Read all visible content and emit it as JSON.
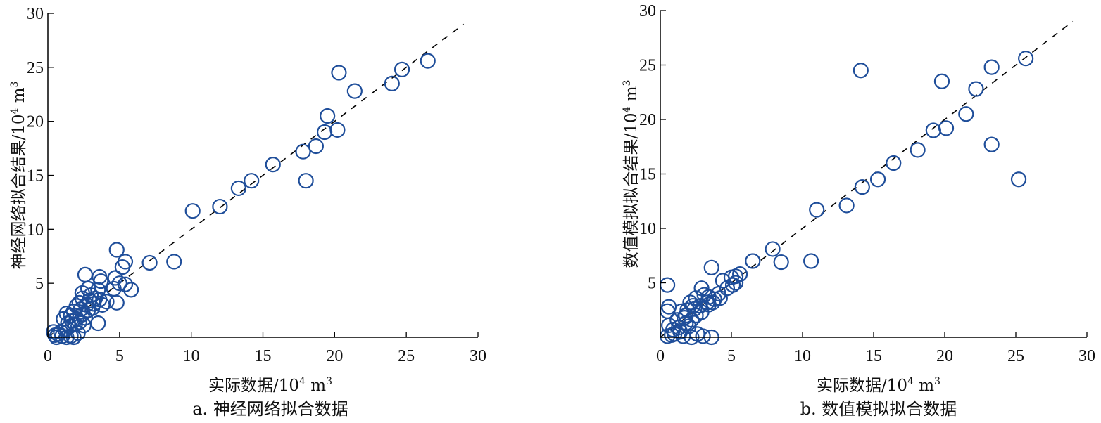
{
  "colors": {
    "marker": "#1f4e9a",
    "axis": "#000000",
    "ref_line": "#000000"
  },
  "chart_data": [
    {
      "type": "scatter",
      "caption": "a. 神经网络拟合数据",
      "xlabel": {
        "text": "实际数据/10",
        "sup1": "4",
        "mid": " m",
        "sup2": "3"
      },
      "ylabel": {
        "text": "神经网络拟合结果/10",
        "sup1": "4",
        "mid": " m",
        "sup2": "3"
      },
      "xlim": [
        0,
        30
      ],
      "ylim": [
        0,
        30
      ],
      "xticks": [
        0,
        5,
        10,
        15,
        20,
        25,
        30
      ],
      "yticks": [
        5,
        10,
        15,
        20,
        25,
        30
      ],
      "reference_line": {
        "style": "dashed",
        "from": [
          0,
          0
        ],
        "to": [
          29,
          29
        ]
      },
      "points": [
        [
          26.5,
          25.6
        ],
        [
          24.7,
          24.8
        ],
        [
          20.3,
          24.5
        ],
        [
          24.0,
          23.5
        ],
        [
          21.4,
          22.8
        ],
        [
          19.5,
          20.5
        ],
        [
          19.3,
          19.0
        ],
        [
          20.2,
          19.2
        ],
        [
          17.8,
          17.2
        ],
        [
          18.7,
          17.7
        ],
        [
          15.7,
          16.0
        ],
        [
          18.0,
          14.5
        ],
        [
          14.2,
          14.5
        ],
        [
          13.3,
          13.8
        ],
        [
          12.0,
          12.1
        ],
        [
          10.1,
          11.7
        ],
        [
          8.8,
          7.0
        ],
        [
          7.1,
          6.9
        ],
        [
          4.8,
          8.1
        ],
        [
          5.4,
          7.0
        ],
        [
          5.2,
          6.5
        ],
        [
          2.6,
          5.8
        ],
        [
          3.6,
          5.6
        ],
        [
          3.7,
          5.2
        ],
        [
          4.7,
          5.5
        ],
        [
          5.0,
          5.0
        ],
        [
          5.4,
          4.9
        ],
        [
          5.8,
          4.4
        ],
        [
          4.6,
          4.5
        ],
        [
          3.5,
          4.4
        ],
        [
          2.8,
          4.5
        ],
        [
          2.4,
          4.1
        ],
        [
          3.0,
          3.9
        ],
        [
          4.1,
          3.3
        ],
        [
          4.8,
          3.2
        ],
        [
          3.6,
          3.5
        ],
        [
          2.9,
          3.4
        ],
        [
          2.4,
          3.6
        ],
        [
          2.2,
          3.2
        ],
        [
          2.0,
          2.9
        ],
        [
          1.8,
          2.4
        ],
        [
          1.6,
          2.0
        ],
        [
          1.3,
          2.2
        ],
        [
          1.1,
          1.7
        ],
        [
          2.4,
          2.1
        ],
        [
          2.8,
          2.5
        ],
        [
          3.1,
          2.7
        ],
        [
          2.6,
          1.8
        ],
        [
          2.2,
          1.4
        ],
        [
          1.9,
          1.2
        ],
        [
          1.5,
          1.0
        ],
        [
          1.2,
          0.7
        ],
        [
          0.9,
          0.5
        ],
        [
          0.7,
          0.3
        ],
        [
          1.0,
          0.1
        ],
        [
          1.6,
          0.1
        ],
        [
          2.1,
          0.4
        ],
        [
          2.5,
          1.1
        ],
        [
          3.5,
          1.3
        ],
        [
          0.5,
          0.2
        ],
        [
          0.4,
          0.5
        ],
        [
          0.6,
          0.0
        ],
        [
          1.3,
          0.0
        ],
        [
          1.8,
          0.0
        ],
        [
          3.2,
          3.1
        ],
        [
          3.8,
          3.0
        ],
        [
          2.0,
          1.7
        ],
        [
          1.4,
          1.3
        ],
        [
          1.7,
          1.5
        ],
        [
          2.3,
          2.6
        ],
        [
          2.7,
          3.0
        ],
        [
          3.3,
          3.6
        ]
      ]
    },
    {
      "type": "scatter",
      "caption": "b. 数值模拟拟合数据",
      "xlabel": {
        "text": "实际数据/10",
        "sup1": "4",
        "mid": " m",
        "sup2": "3"
      },
      "ylabel": {
        "text": "数值模拟拟合结果/10",
        "sup1": "4",
        "mid": " m",
        "sup2": "3"
      },
      "xlim": [
        0,
        30
      ],
      "ylim": [
        0,
        30
      ],
      "xticks": [
        0,
        5,
        10,
        15,
        20,
        25,
        30
      ],
      "yticks": [
        5,
        10,
        15,
        20,
        25,
        30
      ],
      "reference_line": {
        "style": "dashed",
        "from": [
          0,
          0
        ],
        "to": [
          29,
          29
        ]
      },
      "points": [
        [
          25.7,
          25.6
        ],
        [
          23.3,
          24.8
        ],
        [
          14.1,
          24.5
        ],
        [
          19.8,
          23.5
        ],
        [
          22.2,
          22.8
        ],
        [
          21.5,
          20.5
        ],
        [
          19.2,
          19.0
        ],
        [
          20.1,
          19.2
        ],
        [
          18.1,
          17.2
        ],
        [
          23.3,
          17.7
        ],
        [
          16.4,
          16.0
        ],
        [
          25.2,
          14.5
        ],
        [
          15.3,
          14.5
        ],
        [
          14.2,
          13.8
        ],
        [
          13.1,
          12.1
        ],
        [
          11.0,
          11.7
        ],
        [
          10.6,
          7.0
        ],
        [
          8.5,
          6.9
        ],
        [
          7.9,
          8.1
        ],
        [
          6.5,
          7.0
        ],
        [
          3.6,
          6.4
        ],
        [
          5.6,
          5.8
        ],
        [
          5.3,
          5.6
        ],
        [
          5.0,
          5.5
        ],
        [
          4.4,
          5.2
        ],
        [
          5.3,
          5.0
        ],
        [
          5.1,
          4.8
        ],
        [
          4.7,
          4.5
        ],
        [
          2.9,
          4.5
        ],
        [
          4.1,
          4.0
        ],
        [
          3.8,
          3.5
        ],
        [
          3.4,
          3.7
        ],
        [
          3.1,
          3.9
        ],
        [
          2.5,
          3.6
        ],
        [
          2.1,
          3.2
        ],
        [
          0.5,
          4.8
        ],
        [
          0.6,
          2.8
        ],
        [
          0.5,
          2.4
        ],
        [
          1.5,
          2.4
        ],
        [
          1.8,
          2.0
        ],
        [
          2.4,
          2.6
        ],
        [
          2.8,
          2.9
        ],
        [
          3.3,
          3.2
        ],
        [
          1.2,
          1.6
        ],
        [
          0.6,
          1.1
        ],
        [
          0.5,
          0.1
        ],
        [
          1.0,
          0.3
        ],
        [
          1.6,
          0.1
        ],
        [
          2.2,
          0.0
        ],
        [
          3.0,
          0.1
        ],
        [
          3.6,
          0.0
        ],
        [
          1.3,
          0.9
        ],
        [
          1.8,
          1.3
        ],
        [
          2.2,
          1.6
        ],
        [
          0.9,
          0.7
        ],
        [
          2.5,
          2.0
        ],
        [
          2.0,
          1.0
        ],
        [
          1.4,
          0.5
        ],
        [
          2.6,
          0.3
        ],
        [
          0.8,
          0.2
        ],
        [
          1.7,
          1.8
        ],
        [
          2.9,
          2.3
        ],
        [
          3.4,
          3.0
        ],
        [
          2.3,
          2.9
        ],
        [
          1.9,
          2.5
        ],
        [
          4.2,
          3.6
        ],
        [
          3.7,
          3.2
        ]
      ]
    }
  ]
}
